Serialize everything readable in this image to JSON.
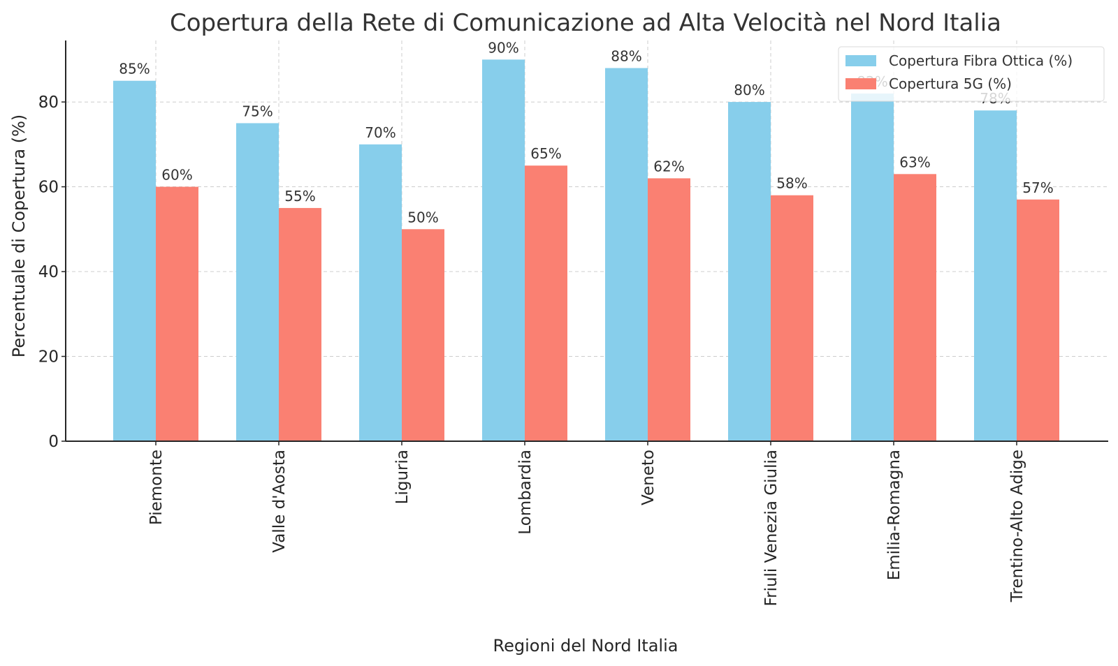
{
  "chart_data": {
    "type": "bar",
    "title": "Copertura della Rete di Comunicazione ad Alta Velocità nel Nord Italia",
    "xlabel": "Regioni del Nord Italia",
    "ylabel": "Percentuale di Copertura (%)",
    "categories": [
      "Piemonte",
      "Valle d'Aosta",
      "Liguria",
      "Lombardia",
      "Veneto",
      "Friuli Venezia Giulia",
      "Emilia-Romagna",
      "Trentino-Alto Adige"
    ],
    "series": [
      {
        "name": "Copertura Fibra Ottica (%)",
        "values": [
          85,
          75,
          70,
          90,
          88,
          80,
          82,
          78
        ],
        "labels": [
          "85%",
          "75%",
          "70%",
          "90%",
          "88%",
          "80%",
          "82%",
          "78%"
        ],
        "color": "#87CEEB"
      },
      {
        "name": "Copertura 5G (%)",
        "values": [
          60,
          55,
          50,
          65,
          62,
          58,
          63,
          57
        ],
        "labels": [
          "60%",
          "55%",
          "50%",
          "65%",
          "62%",
          "58%",
          "63%",
          "57%"
        ],
        "color": "#FA8072"
      }
    ],
    "ylim": [
      0,
      94.5
    ],
    "yticks": [
      0,
      20,
      40,
      60,
      80
    ],
    "grid": true,
    "legend_position": "top-right"
  }
}
